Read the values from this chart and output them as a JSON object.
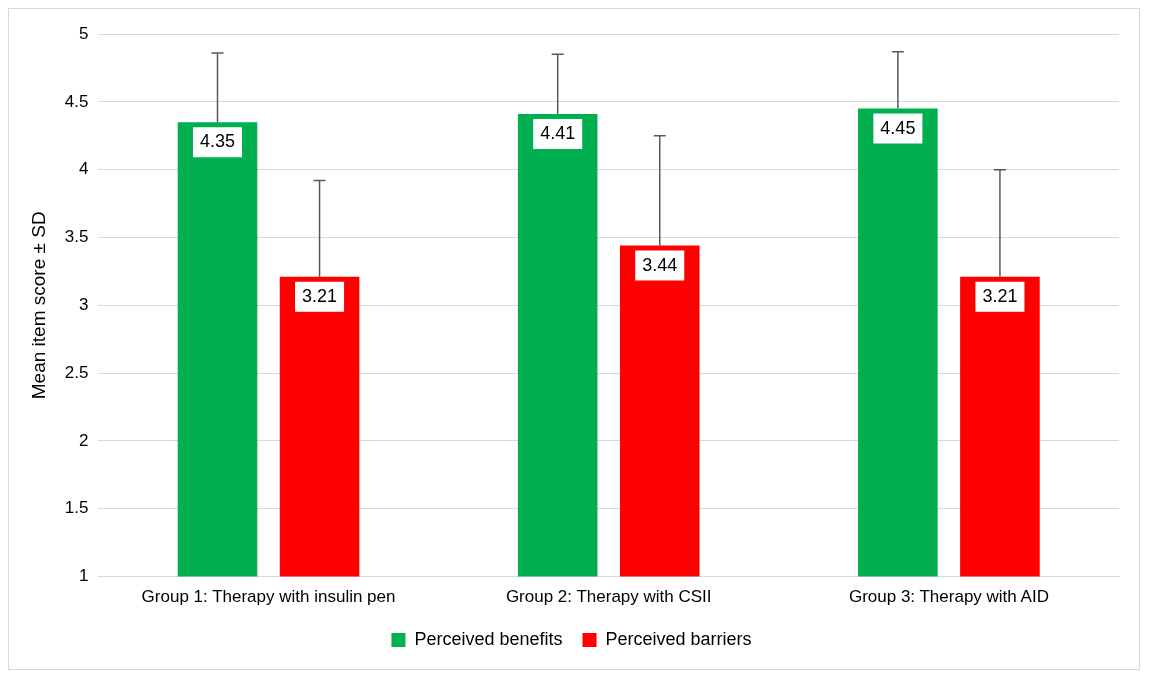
{
  "chart_data": {
    "type": "bar",
    "ylabel": "Mean item score ± SD",
    "categories": [
      "Group 1: Therapy with insulin pen",
      "Group 2: Therapy with CSII",
      "Group 3: Therapy with AID"
    ],
    "series": [
      {
        "name": "Perceived benefits",
        "color": "#00b050",
        "values": [
          4.35,
          4.41,
          4.45
        ],
        "errors": [
          [
            4.35,
            4.86
          ],
          [
            4.41,
            4.85
          ],
          [
            4.45,
            4.87
          ]
        ]
      },
      {
        "name": "Perceived barriers",
        "color": "#ff0000",
        "values": [
          3.21,
          3.44,
          3.21
        ],
        "errors": [
          [
            3.21,
            3.92
          ],
          [
            3.44,
            4.25
          ],
          [
            3.21,
            4.0
          ]
        ]
      }
    ],
    "ylim": [
      1,
      5
    ],
    "yticks": [
      1,
      1.5,
      2,
      2.5,
      3,
      3.5,
      4,
      4.5,
      5
    ],
    "grid": "y",
    "legend": "bottom",
    "data_labels": true
  }
}
